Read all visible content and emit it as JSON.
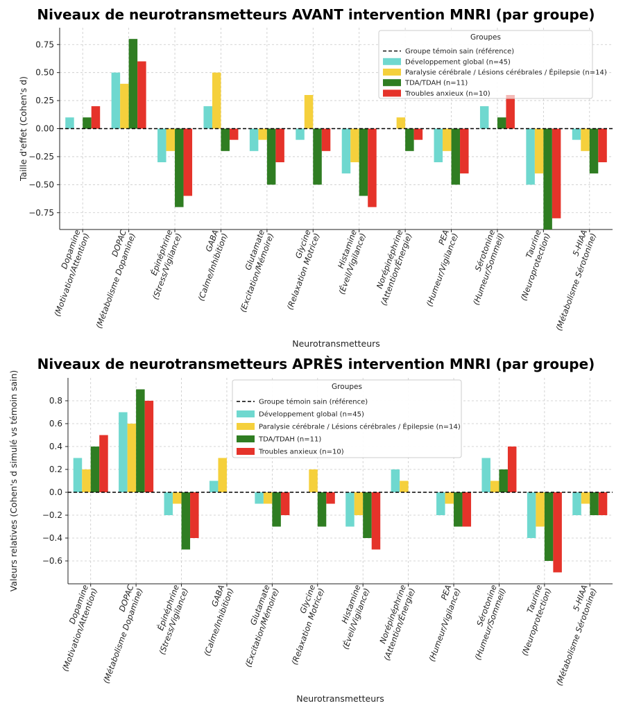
{
  "colors": {
    "dev": "#6fd8cf",
    "pc": "#f5d03c",
    "tda": "#2f7d22",
    "anx": "#e5332a",
    "anx_light": "#f4b9b6",
    "ref": "#000000"
  },
  "chart_data": [
    {
      "type": "bar",
      "title": "Niveaux de neurotransmetteurs AVANT intervention MNRI (par groupe)",
      "xlabel": "Neurotransmetteurs",
      "ylabel": "Taille d'effet (Cohen's d)",
      "ylim": [
        -0.9,
        0.9
      ],
      "yticks": [
        0.75,
        0.5,
        0.25,
        0.0,
        -0.25,
        -0.5,
        -0.75
      ],
      "ytick_labels": [
        "0.75",
        "0.50",
        "0.25",
        "0.00",
        "−0.25",
        "−0.50",
        "−0.75"
      ],
      "grid": true,
      "legend_position": "top-right",
      "legend_title": "Groupes",
      "reference_label": "Groupe témoin sain (référence)",
      "categories": [
        [
          "Dopamine",
          "(Motivation/Attention)"
        ],
        [
          "DOPAC",
          "(Métabolisme Dopamine)"
        ],
        [
          "Épinéphrine",
          "(Stress/Vigilance)"
        ],
        [
          "GABA",
          "(Calme/Inhibition)"
        ],
        [
          "Glutamate",
          "(Excitation/Mémoire)"
        ],
        [
          "Glycine",
          "(Relaxation Motrice)"
        ],
        [
          "Histamine",
          "(Éveil/Vigilance)"
        ],
        [
          "Norépinéphrine",
          "(Attention/Énergie)"
        ],
        [
          "PEA",
          "(Humeur/Vigilance)"
        ],
        [
          "Sérotonine",
          "(Humeur/Sommeil)"
        ],
        [
          "Taurine",
          "(Neuroprotection)"
        ],
        [
          "5-HIAA",
          "(Métabolisme Sérotonine)"
        ]
      ],
      "series": [
        {
          "name": "Développement global (n=45)",
          "color_key": "dev",
          "values": [
            0.1,
            0.5,
            -0.3,
            0.2,
            -0.2,
            -0.1,
            -0.4,
            0.0,
            -0.3,
            0.2,
            -0.5,
            -0.1
          ]
        },
        {
          "name": "Paralysie cérébrale / Lésions cérébrales / Épilepsie (n=14)",
          "color_key": "pc",
          "values": [
            0.0,
            0.4,
            -0.2,
            0.5,
            -0.1,
            0.3,
            -0.3,
            0.1,
            -0.2,
            0.0,
            -0.4,
            -0.2
          ]
        },
        {
          "name": "TDA/TDAH (n=11)",
          "color_key": "tda",
          "values": [
            0.1,
            0.8,
            -0.7,
            -0.2,
            -0.5,
            -0.5,
            -0.6,
            -0.2,
            -0.5,
            0.1,
            -0.9,
            -0.4
          ]
        },
        {
          "name": "Troubles anxieux (n=10)",
          "color_key": "anx",
          "values": [
            0.2,
            0.6,
            -0.6,
            -0.1,
            -0.3,
            -0.2,
            -0.7,
            -0.1,
            -0.4,
            0.3,
            -0.8,
            -0.3
          ]
        }
      ]
    },
    {
      "type": "bar",
      "title": "Niveaux de neurotransmetteurs APRÈS intervention MNRI (par groupe)",
      "xlabel": "Neurotransmetteurs",
      "ylabel": "Valeurs relatives (Cohen's d simulé vs témoin sain)",
      "ylim": [
        -0.8,
        1.0
      ],
      "yticks": [
        0.8,
        0.6,
        0.4,
        0.2,
        0.0,
        -0.2,
        -0.4,
        -0.6
      ],
      "ytick_labels": [
        "0.8",
        "0.6",
        "0.4",
        "0.2",
        "0.0",
        "−0.2",
        "−0.4",
        "−0.6"
      ],
      "grid": true,
      "legend_position": "top-center",
      "legend_title": "Groupes",
      "reference_label": "Groupe témoin sain (référence)",
      "categories": [
        [
          "Dopamine",
          "(Motivation/Attention)"
        ],
        [
          "DOPAC",
          "(Métabolisme Dopamine)"
        ],
        [
          "Épinéphrine",
          "(Stress/Vigilance)"
        ],
        [
          "GABA",
          "(Calme/Inhibition)"
        ],
        [
          "Glutamate",
          "(Excitation/Mémoire)"
        ],
        [
          "Glycine",
          "(Relaxation Motrice)"
        ],
        [
          "Histamine",
          "(Éveil/Vigilance)"
        ],
        [
          "Norépinéphrine",
          "(Attention/Énergie)"
        ],
        [
          "PEA",
          "(Humeur/Vigilance)"
        ],
        [
          "Sérotonine",
          "(Humeur/Sommeil)"
        ],
        [
          "Taurine",
          "(Neuroprotection)"
        ],
        [
          "5-HIAA",
          "(Métabolisme Sérotonine)"
        ]
      ],
      "series": [
        {
          "name": "Développement global (n=45)",
          "color_key": "dev",
          "values": [
            0.3,
            0.7,
            -0.2,
            0.1,
            -0.1,
            0.0,
            -0.3,
            0.2,
            -0.2,
            0.3,
            -0.4,
            -0.2
          ]
        },
        {
          "name": "Paralysie cérébrale / Lésions cérébrales / Épilepsie (n=14)",
          "color_key": "pc",
          "values": [
            0.2,
            0.6,
            -0.1,
            0.3,
            -0.1,
            0.2,
            -0.2,
            0.1,
            -0.1,
            0.1,
            -0.3,
            -0.1
          ]
        },
        {
          "name": "TDA/TDAH (n=11)",
          "color_key": "tda",
          "values": [
            0.4,
            0.9,
            -0.5,
            0.0,
            -0.3,
            -0.3,
            -0.4,
            0.0,
            -0.3,
            0.2,
            -0.6,
            -0.2
          ]
        },
        {
          "name": "Troubles anxieux (n=10)",
          "color_key": "anx",
          "values": [
            0.5,
            0.8,
            -0.4,
            0.0,
            -0.2,
            -0.1,
            -0.5,
            0.0,
            -0.3,
            0.4,
            -0.7,
            -0.2
          ]
        }
      ]
    }
  ]
}
